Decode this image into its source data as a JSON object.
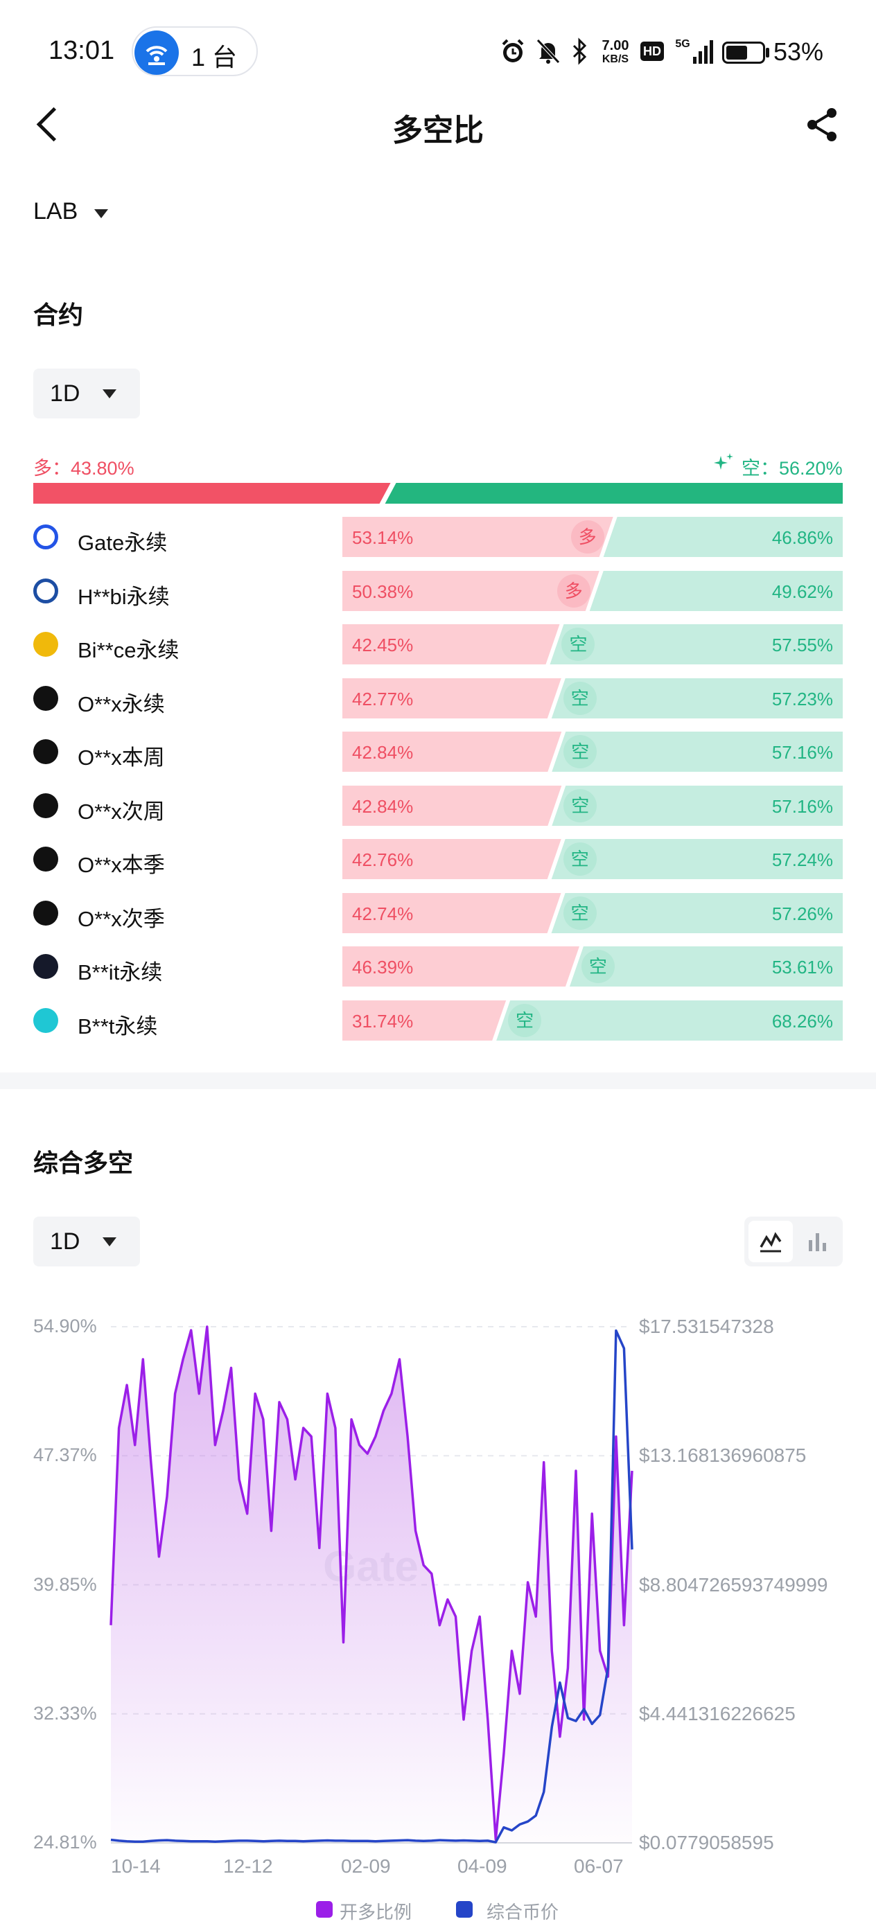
{
  "status_bar": {
    "time": "13:01",
    "hotspot_count": "1 台",
    "net_speed_value": "7.00",
    "net_speed_unit": "KB/S",
    "hd_label": "HD",
    "signal_label": "5G",
    "battery_percent": "53%",
    "icons": [
      "alarm-icon",
      "mute-bell-icon",
      "bluetooth-icon",
      "hd-icon",
      "signal-5g-icon",
      "battery-icon",
      "wifi-hotspot-icon"
    ]
  },
  "header": {
    "title": "多空比",
    "back_icon": "chevron-left-icon",
    "share_icon": "share-icon"
  },
  "coin_selector": {
    "value": "LAB"
  },
  "contract_section": {
    "title": "合约",
    "interval": "1D",
    "long_label": "多：43.80%",
    "short_label": "空：56.20%",
    "long_ratio": 0.438,
    "exchanges": [
      {
        "name": "Gate永续",
        "long": "53.14%",
        "short": "46.86%",
        "long_ratio": 0.5314,
        "badge": "多",
        "icon": "gate-logo-icon",
        "color": "#2354e6"
      },
      {
        "name": "H**bi永续",
        "long": "50.38%",
        "short": "49.62%",
        "long_ratio": 0.5038,
        "badge": "多",
        "icon": "huobi-logo-icon",
        "color": "#1d4ea3"
      },
      {
        "name": "Bi**ce永续",
        "long": "42.45%",
        "short": "57.55%",
        "long_ratio": 0.4245,
        "badge": "空",
        "icon": "binance-logo-icon",
        "color": "#f0b90b"
      },
      {
        "name": "O**x永续",
        "long": "42.77%",
        "short": "57.23%",
        "long_ratio": 0.4277,
        "badge": "空",
        "icon": "okx-logo-icon",
        "color": "#111111"
      },
      {
        "name": "O**x本周",
        "long": "42.84%",
        "short": "57.16%",
        "long_ratio": 0.4284,
        "badge": "空",
        "icon": "okx-logo-icon",
        "color": "#111111"
      },
      {
        "name": "O**x次周",
        "long": "42.84%",
        "short": "57.16%",
        "long_ratio": 0.4284,
        "badge": "空",
        "icon": "okx-logo-icon",
        "color": "#111111"
      },
      {
        "name": "O**x本季",
        "long": "42.76%",
        "short": "57.24%",
        "long_ratio": 0.4276,
        "badge": "空",
        "icon": "okx-logo-icon",
        "color": "#111111"
      },
      {
        "name": "O**x次季",
        "long": "42.74%",
        "short": "57.26%",
        "long_ratio": 0.4274,
        "badge": "空",
        "icon": "okx-logo-icon",
        "color": "#111111"
      },
      {
        "name": "B**it永续",
        "long": "46.39%",
        "short": "53.61%",
        "long_ratio": 0.4639,
        "badge": "空",
        "icon": "bybit-logo-icon",
        "color": "#15192a"
      },
      {
        "name": "B**t永续",
        "long": "31.74%",
        "short": "68.26%",
        "long_ratio": 0.3174,
        "badge": "空",
        "icon": "bitget-logo-icon",
        "color": "#1fc7d4"
      }
    ]
  },
  "composite_section": {
    "title": "综合多空",
    "interval": "1D",
    "toggle_icons": [
      "line-chart-icon",
      "bar-chart-icon"
    ],
    "watermark": "Gate"
  },
  "chart_data": {
    "type": "line",
    "x_ticks": [
      "10-14",
      "12-12",
      "02-09",
      "04-09",
      "06-07"
    ],
    "y_left_ticks": [
      "54.90%",
      "47.37%",
      "39.85%",
      "32.33%",
      "24.81%"
    ],
    "y_right_ticks": [
      "$17.531547328",
      "$13.168136960875",
      "$8.804726593749999",
      "$4.441316226625",
      "$0.0779058595"
    ],
    "y_left_range": [
      24.81,
      54.9
    ],
    "y_right_range": [
      0.0779058595,
      17.531547328
    ],
    "series": [
      {
        "name": "开多比例",
        "color": "#9b1fe8",
        "axis": "left",
        "values": [
          37.5,
          49.0,
          51.5,
          48.0,
          53.0,
          47.0,
          41.5,
          45.0,
          51.0,
          53.0,
          54.7,
          51.0,
          54.9,
          48.0,
          50.0,
          52.5,
          46.0,
          44.0,
          51.0,
          49.5,
          43.0,
          50.5,
          49.5,
          46.0,
          49.0,
          48.5,
          42.0,
          51.0,
          49.0,
          36.5,
          49.5,
          48.0,
          47.5,
          48.5,
          50.0,
          51.0,
          53.0,
          48.5,
          43.0,
          41.0,
          40.5,
          37.5,
          39.0,
          38.0,
          32.0,
          36.0,
          38.0,
          32.0,
          25.0,
          30.0,
          36.0,
          33.5,
          40.0,
          38.0,
          47.0,
          36.0,
          31.0,
          35.0,
          46.5,
          32.0,
          44.0,
          36.0,
          34.5,
          48.5,
          37.5,
          46.5
        ]
      },
      {
        "name": "综合币价",
        "color": "#2545c8",
        "axis": "right",
        "values": [
          0.18,
          0.15,
          0.13,
          0.12,
          0.12,
          0.14,
          0.16,
          0.17,
          0.15,
          0.14,
          0.13,
          0.13,
          0.13,
          0.12,
          0.13,
          0.14,
          0.15,
          0.15,
          0.14,
          0.13,
          0.14,
          0.15,
          0.14,
          0.14,
          0.13,
          0.14,
          0.15,
          0.16,
          0.15,
          0.15,
          0.14,
          0.14,
          0.14,
          0.13,
          0.14,
          0.15,
          0.16,
          0.17,
          0.15,
          0.14,
          0.15,
          0.17,
          0.16,
          0.15,
          0.16,
          0.15,
          0.14,
          0.15,
          0.1,
          0.6,
          0.5,
          0.7,
          0.8,
          1.0,
          1.8,
          4.0,
          5.5,
          4.3,
          4.2,
          4.6,
          4.1,
          4.4,
          6.0,
          17.4,
          16.8,
          10.0
        ]
      }
    ]
  }
}
